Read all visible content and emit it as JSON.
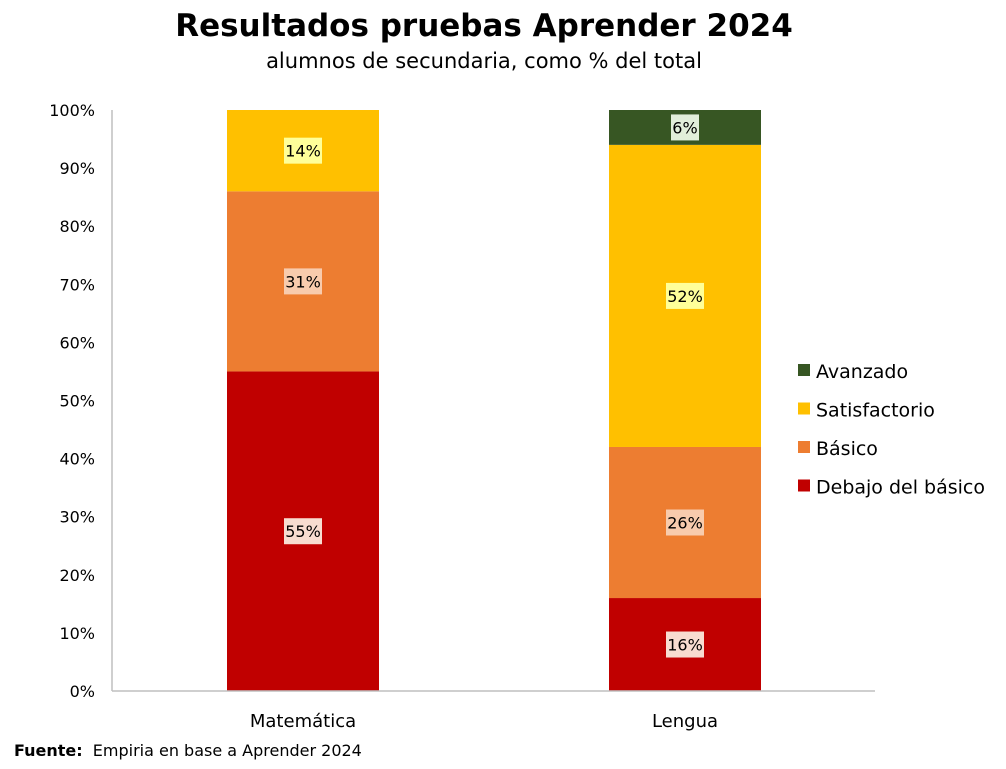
{
  "chart_data": {
    "type": "bar",
    "stacked": true,
    "title": "Resultados pruebas Aprender 2024",
    "subtitle": "alumnos de secundaria, como % del total",
    "categories": [
      "Matemática",
      "Lengua"
    ],
    "ylim": [
      0,
      100
    ],
    "y_ticks": [
      0,
      10,
      20,
      30,
      40,
      50,
      60,
      70,
      80,
      90,
      100
    ],
    "y_tick_suffix": "%",
    "grid": false,
    "legend_position": "right",
    "series": [
      {
        "name": "Debajo del básico",
        "color": "#c00000",
        "label_bg": "#f8dcd0",
        "values": [
          55,
          16
        ],
        "labels": [
          "55%",
          "16%"
        ]
      },
      {
        "name": "Básico",
        "color": "#ed7d31",
        "label_bg": "#f8cbad",
        "values": [
          31,
          26
        ],
        "labels": [
          "31%",
          "26%"
        ]
      },
      {
        "name": "Satisfactorio",
        "color": "#ffc000",
        "label_bg": "#ffff99",
        "values": [
          14,
          52
        ],
        "labels": [
          "14%",
          "52%"
        ]
      },
      {
        "name": "Avanzado",
        "color": "#375623",
        "label_bg": "#e2efda",
        "values": [
          0,
          6
        ],
        "labels": [
          "",
          "6%"
        ]
      }
    ]
  },
  "footer": {
    "source_label": "Fuente:",
    "source_text": "Empiria en base a Aprender 2024"
  }
}
